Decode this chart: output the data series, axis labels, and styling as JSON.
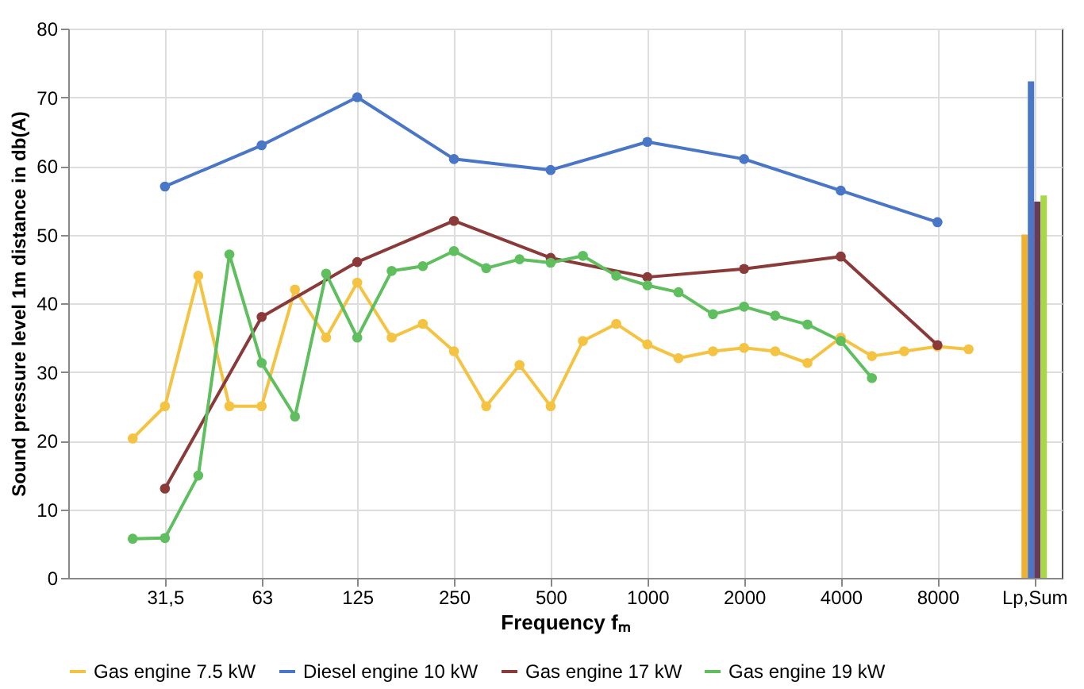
{
  "chart_data": {
    "type": "line",
    "xlabel": "Frequency fₘ",
    "ylabel": "Sound pressure level 1m distance in db(A)",
    "log": "x",
    "grid": true,
    "legend": "bottom",
    "marker": "circle",
    "line_style": "solid",
    "xlim": [
      15.75,
      19500
    ],
    "ylim": [
      0,
      80
    ],
    "yticks": [
      0,
      10,
      20,
      30,
      40,
      50,
      60,
      70,
      80
    ],
    "xticks": [
      {
        "value": 31.5,
        "label": "31,5"
      },
      63,
      125,
      250,
      500,
      1000,
      2000,
      4000,
      8000,
      {
        "value": 16000,
        "label": "Lp,Sum"
      }
    ],
    "series": [
      {
        "name": "Gas engine 7.5 kW",
        "color": "#f5c342",
        "x": [
          25,
          31.5,
          40,
          50,
          63,
          80,
          100,
          125,
          160,
          200,
          250,
          315,
          400,
          500,
          630,
          800,
          1000,
          1250,
          1600,
          2000,
          2500,
          3150,
          4000,
          5000,
          6300,
          8000,
          10000
        ],
        "values": [
          20.3,
          25,
          44,
          25,
          25,
          42,
          35,
          43,
          35,
          37,
          33,
          25,
          31,
          25,
          34.5,
          37,
          34,
          32,
          33,
          33.5,
          33,
          31.3,
          35,
          32.3,
          33,
          33.7,
          33.3
        ]
      },
      {
        "name": "Diesel engine 10 kW",
        "color": "#4a76c8",
        "x": [
          31.5,
          63,
          125,
          250,
          500,
          1000,
          2000,
          4000,
          8000
        ],
        "values": [
          57,
          63,
          70,
          61,
          59.4,
          63.5,
          61,
          56.4,
          51.8
        ]
      },
      {
        "name": "Gas engine 17 kW",
        "color": "#8b3a3a",
        "x": [
          31.5,
          63,
          125,
          250,
          500,
          1000,
          2000,
          4000,
          8000
        ],
        "values": [
          13,
          38,
          46,
          52,
          46.6,
          43.8,
          45,
          46.8,
          33.9
        ]
      },
      {
        "name": "Gas engine 19 kW",
        "color": "#5fbf5f",
        "x": [
          25,
          31.5,
          40,
          50,
          63,
          80,
          100,
          125,
          160,
          200,
          250,
          315,
          400,
          500,
          630,
          800,
          1000,
          1250,
          1600,
          2000,
          2500,
          3150,
          4000,
          5000
        ],
        "values": [
          5.7,
          5.8,
          14.9,
          47.1,
          31.3,
          23.5,
          44.3,
          35,
          44.7,
          45.4,
          47.6,
          45.1,
          46.4,
          45.9,
          46.9,
          44,
          42.6,
          41.6,
          38.4,
          39.5,
          38.2,
          36.9,
          34.5,
          29.1
        ]
      },
      {
        "type": "bar",
        "color": "#f0b030",
        "x": [
          16000
        ],
        "values": [
          50
        ]
      },
      {
        "type": "bar",
        "color": "#4a76c8",
        "x": [
          16000
        ],
        "values": [
          72.3
        ]
      },
      {
        "type": "bar",
        "color": "#6a3a5a",
        "x": [
          16000
        ],
        "values": [
          54.8
        ]
      },
      {
        "type": "bar",
        "color": "#a8d848",
        "x": [
          16000
        ],
        "values": [
          55.7
        ]
      }
    ]
  }
}
